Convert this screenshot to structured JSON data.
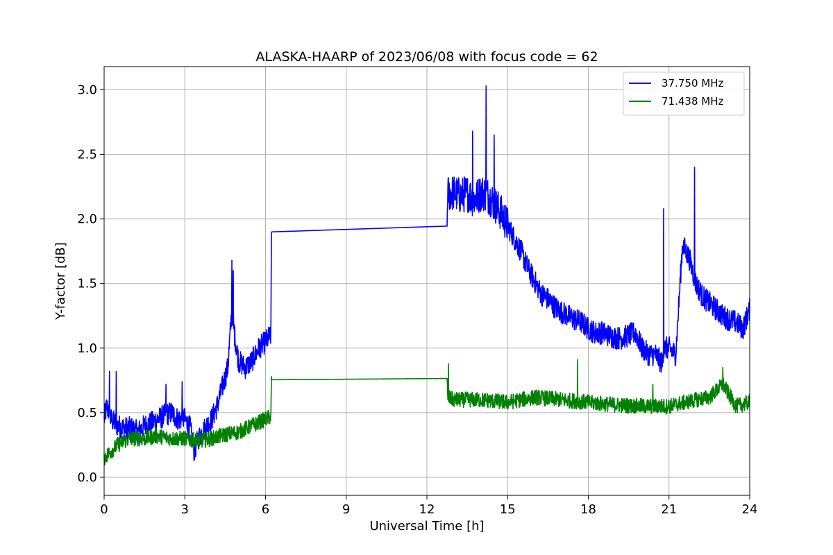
{
  "chart_data": {
    "type": "line",
    "title": "ALASKA-HAARP of 2023/06/08 with focus code = 62",
    "xlabel": "Universal Time [h]",
    "ylabel": "Y-factor [dB]",
    "xlim": [
      0,
      24
    ],
    "ylim": [
      -0.14,
      3.18
    ],
    "xticks": [
      0,
      3,
      6,
      9,
      12,
      15,
      18,
      21,
      24
    ],
    "xtick_labels": [
      "0",
      "3",
      "6",
      "9",
      "12",
      "15",
      "18",
      "21",
      "24"
    ],
    "yticks": [
      0.0,
      0.5,
      1.0,
      1.5,
      2.0,
      2.5,
      3.0
    ],
    "ytick_labels": [
      "0.0",
      "0.5",
      "1.0",
      "1.5",
      "2.0",
      "2.5",
      "3.0"
    ],
    "grid": true,
    "legend_position": "top-right",
    "series": [
      {
        "name": "37.750 MHz",
        "color": "#0000ff",
        "x": [
          0.0,
          0.1,
          0.25,
          0.5,
          0.75,
          1.0,
          1.25,
          1.5,
          1.75,
          2.0,
          2.25,
          2.5,
          2.75,
          3.0,
          3.2,
          3.35,
          3.5,
          3.75,
          4.0,
          4.2,
          4.4,
          4.6,
          4.75,
          4.85,
          5.0,
          5.25,
          5.5,
          5.75,
          6.0,
          6.2,
          6.22,
          12.75,
          12.77,
          13.0,
          13.25,
          13.5,
          13.75,
          14.0,
          14.2,
          14.4,
          14.75,
          15.0,
          15.25,
          15.5,
          15.75,
          16.0,
          16.25,
          16.5,
          16.75,
          17.0,
          17.25,
          17.5,
          17.75,
          18.0,
          18.25,
          18.5,
          18.75,
          19.0,
          19.25,
          19.5,
          19.75,
          20.0,
          20.25,
          20.5,
          20.75,
          20.8,
          21.0,
          21.25,
          21.5,
          21.75,
          22.0,
          22.25,
          22.5,
          22.75,
          23.0,
          23.25,
          23.5,
          23.75,
          24.0
        ],
        "y": [
          0.45,
          0.55,
          0.45,
          0.4,
          0.38,
          0.38,
          0.35,
          0.4,
          0.42,
          0.45,
          0.48,
          0.5,
          0.45,
          0.45,
          0.38,
          0.2,
          0.3,
          0.38,
          0.45,
          0.55,
          0.7,
          0.85,
          1.3,
          1.1,
          0.9,
          0.85,
          0.9,
          1.0,
          1.05,
          1.1,
          1.9,
          1.945,
          2.2,
          2.2,
          2.18,
          2.2,
          2.15,
          2.2,
          2.2,
          2.15,
          2.05,
          1.95,
          1.85,
          1.75,
          1.62,
          1.52,
          1.42,
          1.38,
          1.32,
          1.28,
          1.25,
          1.22,
          1.2,
          1.15,
          1.12,
          1.12,
          1.1,
          1.08,
          1.08,
          1.1,
          1.12,
          1.0,
          0.95,
          0.95,
          0.88,
          1.0,
          1.0,
          0.95,
          1.8,
          1.7,
          1.5,
          1.4,
          1.35,
          1.3,
          1.25,
          1.22,
          1.2,
          1.15,
          1.3
        ],
        "spikes": [
          [
            0.2,
            0.82
          ],
          [
            0.45,
            0.82
          ],
          [
            2.3,
            0.72
          ],
          [
            2.9,
            0.74
          ],
          [
            4.75,
            1.68
          ],
          [
            4.8,
            1.6
          ],
          [
            13.7,
            2.68
          ],
          [
            14.2,
            3.03
          ],
          [
            14.5,
            2.65
          ],
          [
            20.8,
            2.08
          ],
          [
            21.95,
            2.4
          ]
        ]
      },
      {
        "name": "71.438 MHz",
        "color": "#008000",
        "x": [
          0.0,
          0.25,
          0.5,
          0.75,
          1.0,
          1.5,
          2.0,
          2.5,
          3.0,
          3.5,
          4.0,
          4.5,
          5.0,
          5.5,
          6.0,
          6.2,
          6.22,
          12.75,
          12.77,
          13.0,
          14.0,
          15.0,
          16.0,
          17.0,
          18.0,
          19.0,
          20.0,
          21.0,
          22.0,
          22.5,
          23.0,
          23.5,
          24.0
        ],
        "y": [
          0.15,
          0.2,
          0.25,
          0.28,
          0.3,
          0.3,
          0.32,
          0.3,
          0.3,
          0.28,
          0.3,
          0.33,
          0.35,
          0.4,
          0.45,
          0.47,
          0.755,
          0.765,
          0.62,
          0.6,
          0.6,
          0.58,
          0.62,
          0.6,
          0.58,
          0.56,
          0.55,
          0.55,
          0.6,
          0.62,
          0.72,
          0.55,
          0.58
        ],
        "spikes": [
          [
            12.8,
            0.88
          ],
          [
            17.6,
            0.91
          ],
          [
            20.4,
            0.72
          ],
          [
            23.0,
            0.85
          ]
        ]
      }
    ]
  }
}
